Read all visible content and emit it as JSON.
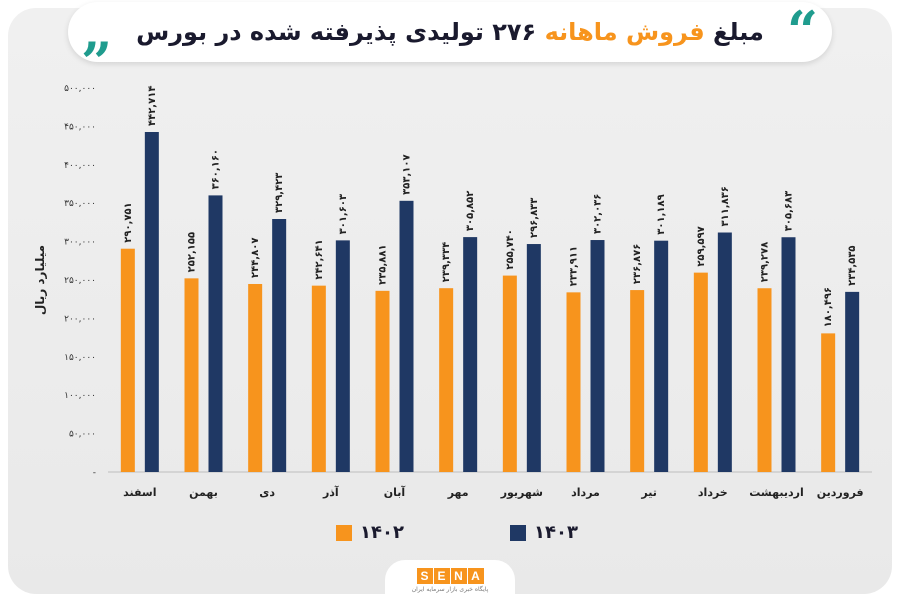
{
  "header": {
    "title_part1": "مبلغ",
    "title_highlight": "فروش ماهانه",
    "title_part2": "۲۷۶ تولیدی پذیرفته شده در بورس",
    "quote_open": "“",
    "quote_close": "„"
  },
  "footer": {
    "logo_letters": [
      "S",
      "E",
      "N",
      "A"
    ],
    "logo_tagline": "پایگاه خبری بازار سرمایه ایران"
  },
  "colors": {
    "series_1402": "#f7941d",
    "series_1403": "#1f3864",
    "accent": "#1f9c8e"
  },
  "chart_data": {
    "type": "bar",
    "ylabel": "میلیارد ریال",
    "ylim": [
      0,
      500000
    ],
    "yticks": [
      "-",
      "۵۰,۰۰۰",
      "۱۰۰,۰۰۰",
      "۱۵۰,۰۰۰",
      "۲۰۰,۰۰۰",
      "۲۵۰,۰۰۰",
      "۳۰۰,۰۰۰",
      "۳۵۰,۰۰۰",
      "۴۰۰,۰۰۰",
      "۴۵۰,۰۰۰",
      "۵۰۰,۰۰۰"
    ],
    "categories": [
      "فروردین",
      "اردیبهشت",
      "خرداد",
      "تیر",
      "مرداد",
      "شهریور",
      "مهر",
      "آبان",
      "آذر",
      "دی",
      "بهمن",
      "اسفند"
    ],
    "series": [
      {
        "name": "۱۴۰۲",
        "values": [
          180496,
          239278,
          259597,
          236876,
          233911,
          255740,
          239334,
          235881,
          242641,
          244807,
          252155,
          290751
        ],
        "labels": [
          "۱۸۰,۴۹۶",
          "۲۳۹,۲۷۸",
          "۲۵۹,۵۹۷",
          "۲۳۶,۸۷۶",
          "۲۳۳,۹۱۱",
          "۲۵۵,۷۴۰",
          "۲۳۹,۳۳۴",
          "۲۳۵,۸۸۱",
          "۲۴۲,۶۴۱",
          "۲۴۴,۸۰۷",
          "۲۵۲,۱۵۵",
          "۲۹۰,۷۵۱"
        ]
      },
      {
        "name": "۱۴۰۳",
        "values": [
          234535,
          305683,
          311836,
          301189,
          302036,
          296833,
          305852,
          353107,
          301603,
          329423,
          360160,
          442714
        ],
        "labels": [
          "۲۳۴,۵۳۵",
          "۳۰۵,۶۸۳",
          "۳۱۱,۸۳۶",
          "۳۰۱,۱۸۹",
          "۳۰۲,۰۳۶",
          "۲۹۶,۸۳۳",
          "۳۰۵,۸۵۲",
          "۳۵۳,۱۰۷",
          "۳۰۱,۶۰۳",
          "۳۲۹,۴۲۳",
          "۳۶۰,۱۶۰",
          "۴۴۲,۷۱۴"
        ]
      }
    ]
  }
}
